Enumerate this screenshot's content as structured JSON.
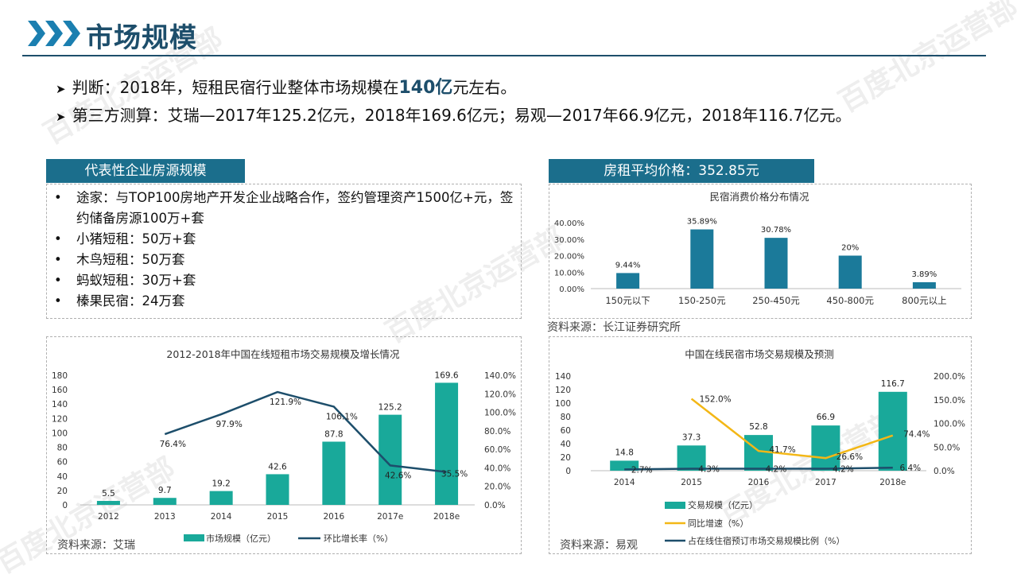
{
  "header": {
    "title": "市场规模"
  },
  "bullets": [
    {
      "prefix": "判断：2018年，短租民宿行业整体市场规模在",
      "highlight": "140亿",
      "suffix": "元左右。"
    },
    {
      "text": "第三方测算：艾瑞—2017年125.2亿元，2018年169.6亿元；易观—2017年66.9亿元，2018年116.7亿元。"
    }
  ],
  "left_panel": {
    "banner": "代表性企业房源规模",
    "bullet_char": "•",
    "items": [
      "途家：与TOP100房地产开发企业战略合作，签约管理资产1500亿+元，签约储备房源100万+套",
      "小猪短租：50万+套",
      "木鸟短租：50万套",
      "蚂蚁短租：30万+套",
      "榛果民宿：24万套"
    ]
  },
  "right_panel": {
    "banner": "房租平均价格：352.85元",
    "source": "资料来源：长江证券研究所"
  },
  "bottom_left": {
    "source": "资料来源：艾瑞"
  },
  "bottom_right": {
    "source": "资料来源：易观"
  },
  "watermark": "百度北京运营部",
  "colors": {
    "brand_dark": "#1d4e6b",
    "banner": "#1b6e8c",
    "bar_green": "#19a99a",
    "bar_blue": "#1b7a9a",
    "line_dark": "#1d4e6b",
    "line_orange": "#f3b716"
  },
  "chart_data": [
    {
      "id": "price-distribution",
      "type": "bar",
      "title": "民宿消费价格分布情况",
      "categories": [
        "150元以下",
        "150-250元",
        "250-450元",
        "450-800元",
        "800元以上"
      ],
      "values": [
        9.44,
        35.89,
        30.78,
        20,
        3.89
      ],
      "value_labels": [
        "9.44%",
        "35.89%",
        "30.78%",
        "20%",
        "3.89%"
      ],
      "yticks": [
        "0.00%",
        "10.00%",
        "20.00%",
        "30.00%",
        "40.00%"
      ],
      "ylim": [
        0,
        40
      ],
      "grid": false
    },
    {
      "id": "short-rent-market",
      "type": "bar+line",
      "title": "2012-2018年中国在线短租市场交易规模及增长情况",
      "categories": [
        "2012",
        "2013",
        "2014",
        "2015",
        "2016",
        "2017e",
        "2018e"
      ],
      "series": [
        {
          "name": "市场规模（亿元）",
          "type": "bar",
          "axis": "left",
          "values": [
            5.5,
            9.7,
            19.2,
            42.6,
            87.8,
            125.2,
            169.6
          ]
        },
        {
          "name": "环比增长率（%）",
          "type": "line",
          "axis": "right",
          "values": [
            null,
            76.4,
            97.9,
            121.9,
            106.1,
            42.6,
            35.5
          ]
        }
      ],
      "bar_labels": [
        "5.5",
        "9.7",
        "19.2",
        "42.6",
        "87.8",
        "125.2",
        "169.6"
      ],
      "line_labels": [
        "",
        "76.4%",
        "97.9%",
        "121.9%",
        "106.1%",
        "42.6%",
        "35.5%"
      ],
      "yticks_left": [
        "0",
        "20",
        "40",
        "60",
        "80",
        "100",
        "120",
        "140",
        "160",
        "180"
      ],
      "yticks_right": [
        "0.0%",
        "20.0%",
        "40.0%",
        "60.0%",
        "80.0%",
        "100.0%",
        "120.0%",
        "140.0%"
      ],
      "ylim_left": [
        0,
        180
      ],
      "ylim_right": [
        0,
        140
      ],
      "legend": "bottom"
    },
    {
      "id": "homestay-market",
      "type": "bar+line",
      "title": "中国在线民宿市场交易规模及预测",
      "categories": [
        "2014",
        "2015",
        "2016",
        "2017",
        "2018e"
      ],
      "series": [
        {
          "name": "交易规模（亿元）",
          "type": "bar",
          "axis": "left",
          "values": [
            14.8,
            37.3,
            52.8,
            66.9,
            116.7
          ]
        },
        {
          "name": "同比增速（%）",
          "type": "line",
          "axis": "right",
          "values": [
            null,
            152.0,
            41.7,
            26.6,
            74.4
          ]
        },
        {
          "name": "占在线住宿预订市场交易规模比例（%）",
          "type": "line",
          "axis": "right",
          "values": [
            2.7,
            4.3,
            4.2,
            4.2,
            6.4
          ]
        }
      ],
      "bar_labels": [
        "14.8",
        "37.3",
        "52.8",
        "66.9",
        "116.7"
      ],
      "line1_labels": [
        "",
        "152.0%",
        "41.7%",
        "26.6%",
        "74.4%"
      ],
      "line2_labels": [
        "2.7%",
        "4.3%",
        "4.2%",
        "4.2%",
        "6.4%"
      ],
      "yticks_left": [
        "0",
        "20",
        "40",
        "60",
        "80",
        "100",
        "120",
        "140"
      ],
      "yticks_right": [
        "0.0%",
        "50.0%",
        "100.0%",
        "150.0%",
        "200.0%"
      ],
      "ylim_left": [
        0,
        140
      ],
      "ylim_right": [
        0,
        200
      ],
      "legend": "bottom"
    }
  ]
}
